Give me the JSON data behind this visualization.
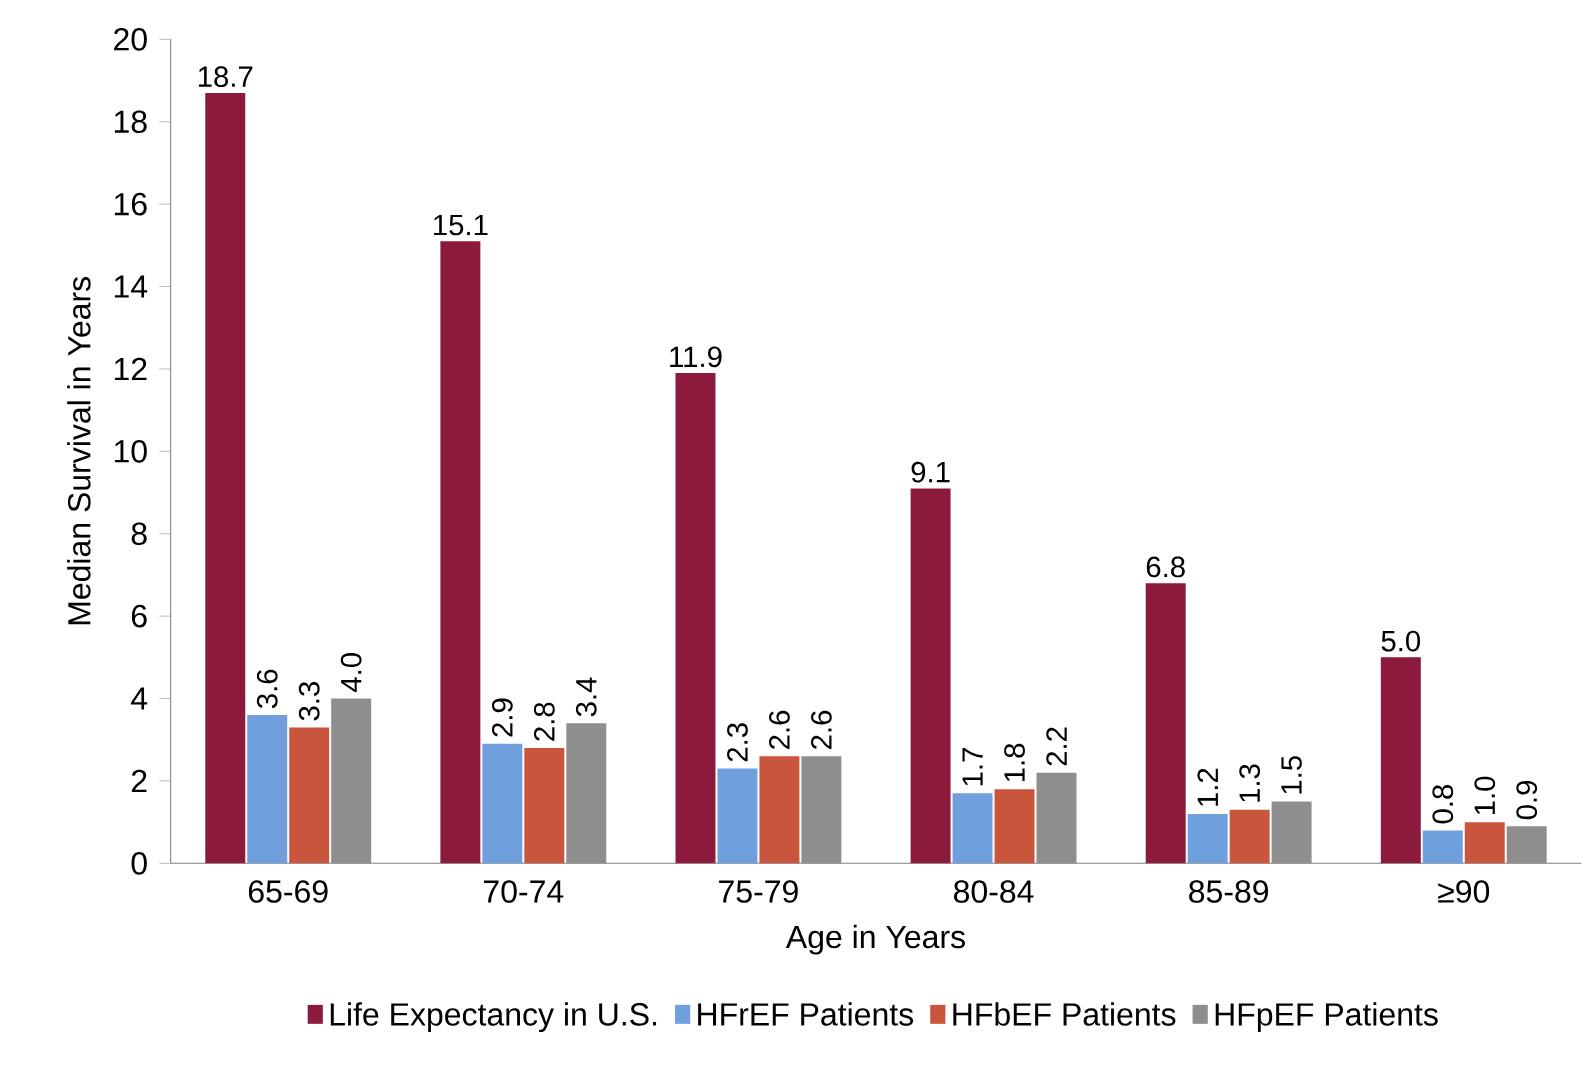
{
  "chart_data": {
    "type": "bar",
    "xlabel": "Age in Years",
    "ylabel": "Median Survival in Years",
    "categories": [
      "65-69",
      "70-74",
      "75-79",
      "80-84",
      "85-89",
      "≥90"
    ],
    "series": [
      {
        "name": "Life Expectancy in U.S.",
        "color": "#8b1a3c",
        "values": [
          18.7,
          15.1,
          11.9,
          9.1,
          6.8,
          5.0
        ],
        "value_labels": [
          "18.7",
          "15.1",
          "11.9",
          "9.1",
          "6.8",
          "5.0"
        ]
      },
      {
        "name": "HFrEF Patients",
        "color": "#6f9fdc",
        "values": [
          3.6,
          2.9,
          2.3,
          1.7,
          1.2,
          0.8
        ],
        "value_labels": [
          "3.6",
          "2.9",
          "2.3",
          "1.7",
          "1.2",
          "0.8"
        ]
      },
      {
        "name": "HFbEF Patients",
        "color": "#c9553c",
        "values": [
          3.3,
          2.8,
          2.6,
          1.8,
          1.3,
          1.0
        ],
        "value_labels": [
          "3.3",
          "2.8",
          "2.6",
          "1.8",
          "1.3",
          "1.0"
        ]
      },
      {
        "name": "HFpEF Patients",
        "color": "#8e8e8e",
        "values": [
          4.0,
          3.4,
          2.6,
          2.2,
          1.5,
          0.9
        ],
        "value_labels": [
          "4.0",
          "3.4",
          "2.6",
          "2.2",
          "1.5",
          "0.9"
        ]
      }
    ],
    "ylim": [
      0,
      20
    ],
    "yticks": [
      0,
      2,
      4,
      6,
      8,
      10,
      12,
      14,
      16,
      18,
      20
    ],
    "grid": false,
    "legend": "bottom"
  }
}
